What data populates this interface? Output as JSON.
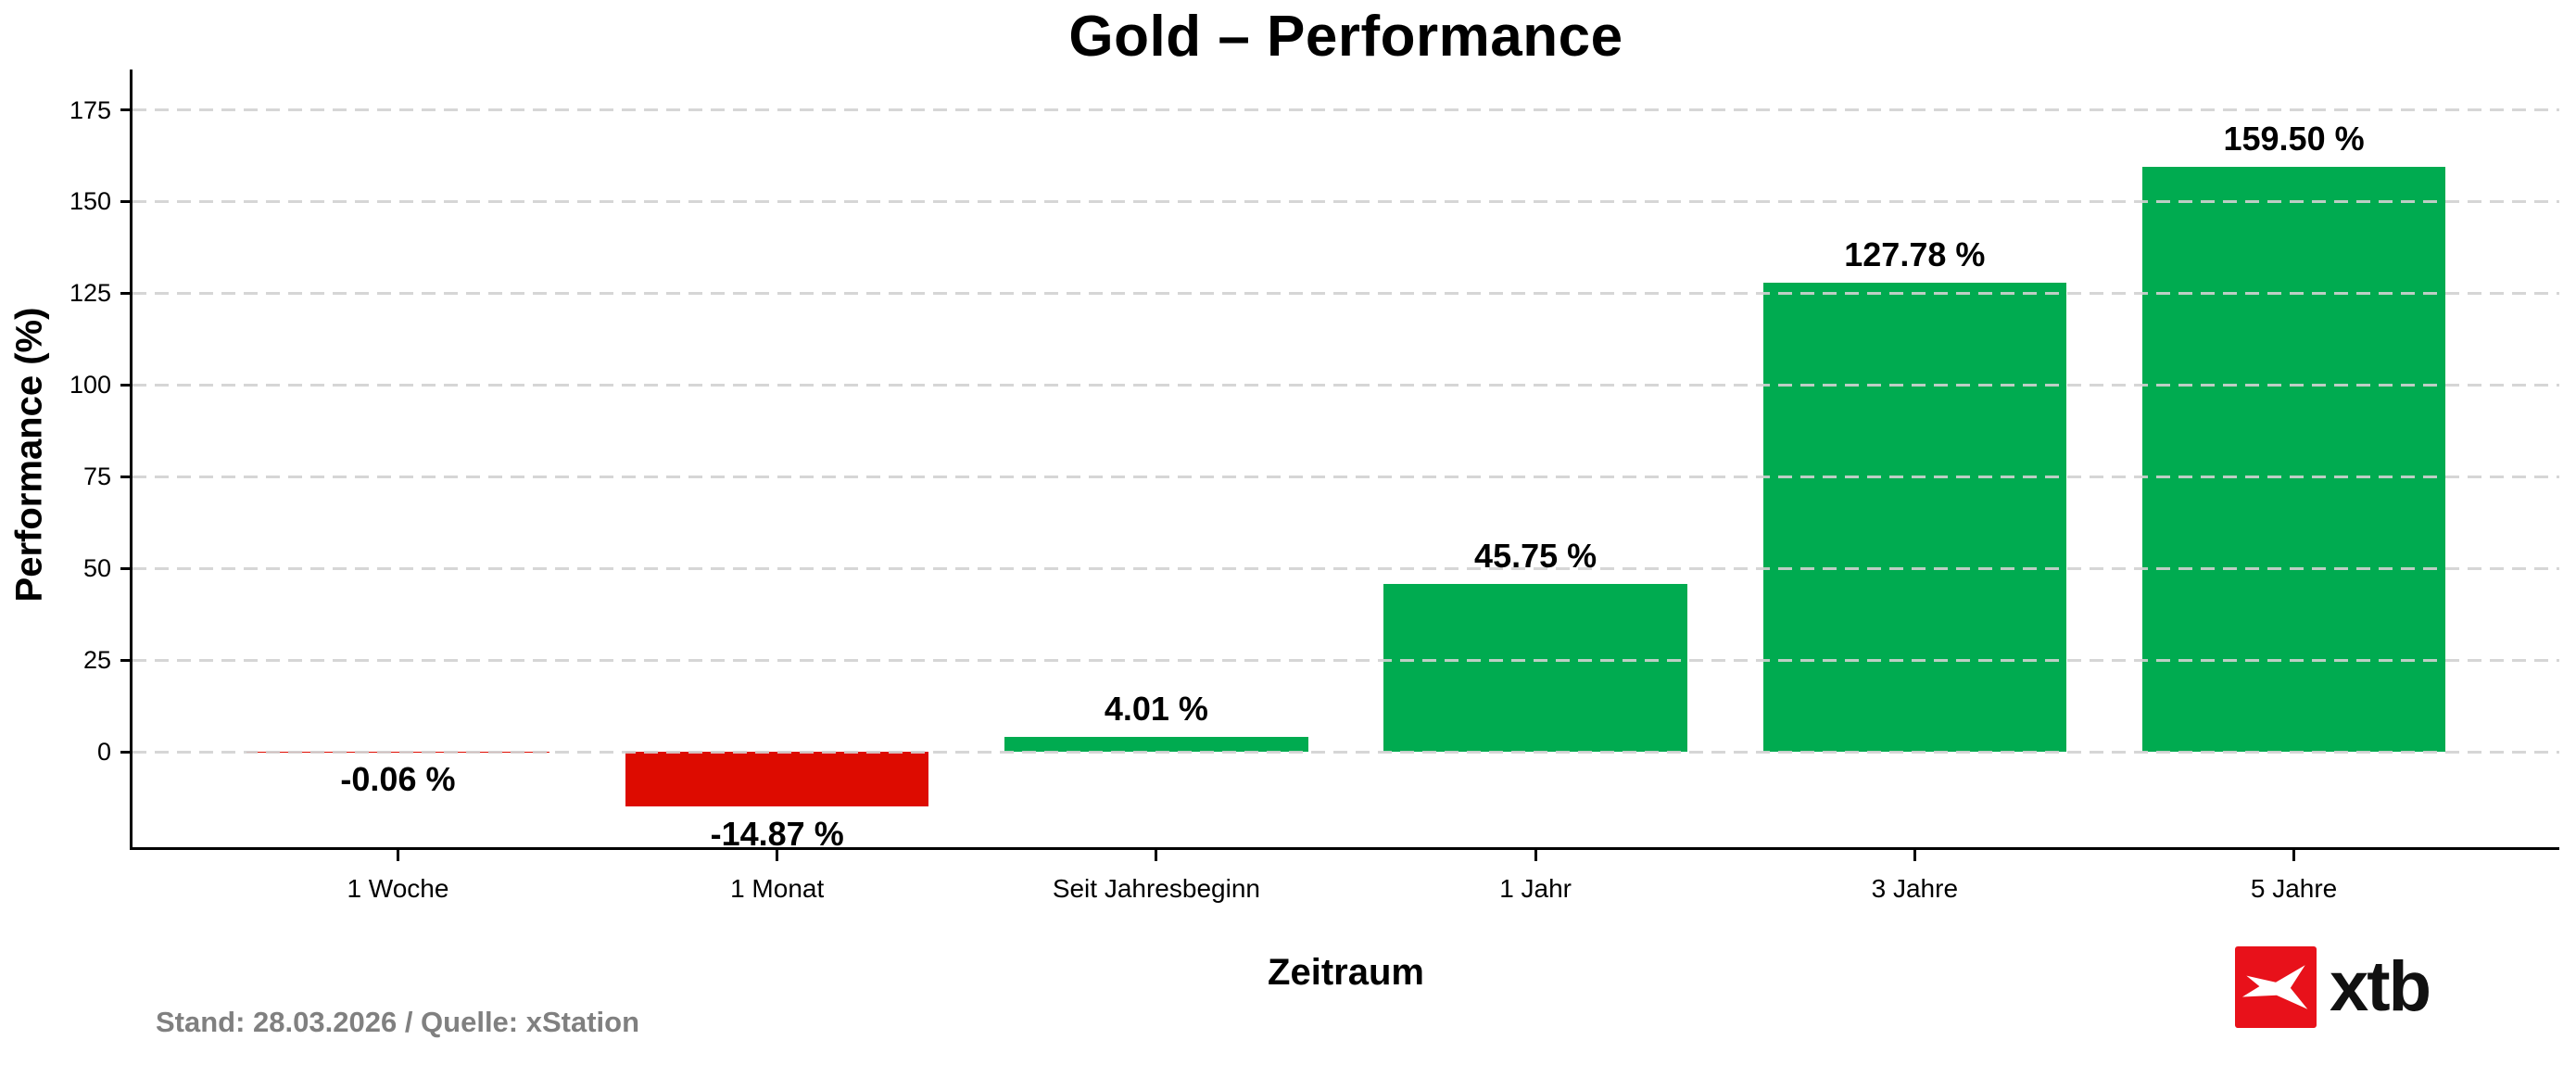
{
  "chart_data": {
    "type": "bar",
    "title": "Gold – Performance",
    "xlabel": "Zeitraum",
    "ylabel": "Performance (%)",
    "categories": [
      "1 Woche",
      "1 Monat",
      "Seit Jahresbeginn",
      "1 Jahr",
      "3 Jahre",
      "5 Jahre"
    ],
    "values": [
      -0.06,
      -14.87,
      4.01,
      45.75,
      127.78,
      159.5
    ],
    "bar_labels": [
      "-0.06 %",
      "-14.87 %",
      "4.01 %",
      "45.75 %",
      "127.78 %",
      "159.50 %"
    ],
    "yticks": [
      0,
      25,
      50,
      75,
      100,
      125,
      150,
      175
    ],
    "ylim": [
      -26,
      186
    ],
    "x_margin": 0.7,
    "bar_width": 0.8,
    "grid": {
      "axis": "y",
      "style": "dashed",
      "color": "#d2d2d2"
    },
    "legend_position": null,
    "colors": {
      "positive": "#00ab50",
      "negative": "#dd0b00",
      "axis": "#000000"
    }
  },
  "footer": {
    "status_text": "Stand: 28.03.2026 / Quelle: xStation"
  },
  "logo": {
    "brand_text": "xtb",
    "square_color": "#e8111a",
    "glyph_color": "#ffffff"
  }
}
